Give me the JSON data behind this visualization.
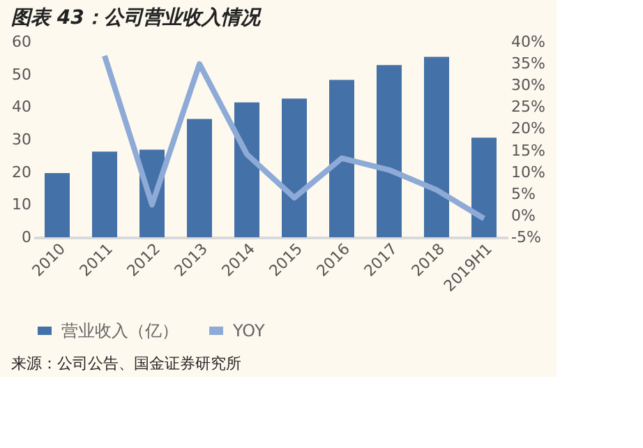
{
  "chart_data": {
    "type": "bar",
    "title": "图表 43：公司营业收入情况",
    "categories": [
      "2010",
      "2011",
      "2012",
      "2013",
      "2014",
      "2015",
      "2016",
      "2017",
      "2018",
      "2019H1"
    ],
    "series": [
      {
        "name": "营业收入（亿）",
        "color": "#4471a7",
        "values": [
          19.7,
          26.3,
          26.9,
          36.3,
          41.4,
          42.6,
          48.3,
          52.9,
          55.4,
          30.6
        ]
      },
      {
        "name": "YOY",
        "type": "line",
        "axis": "y2",
        "color": "#8eaad6",
        "values": [
          null,
          36.8,
          2.5,
          34.9,
          14.1,
          4.1,
          13.2,
          10.5,
          5.9,
          -0.7
        ]
      }
    ],
    "ylim": [
      0,
      60
    ],
    "yticks": [
      0,
      10,
      20,
      30,
      40,
      50,
      60
    ],
    "y2lim": [
      -5,
      40
    ],
    "y2ticks": [
      {
        "value": -5,
        "label": "-5%"
      },
      {
        "value": 0,
        "label": "0%"
      },
      {
        "value": 5,
        "label": "5%"
      },
      {
        "value": 10,
        "label": "10%"
      },
      {
        "value": 15,
        "label": "15%"
      },
      {
        "value": 20,
        "label": "20%"
      },
      {
        "value": 25,
        "label": "25%"
      },
      {
        "value": 30,
        "label": "30%"
      },
      {
        "value": 35,
        "label": "35%"
      },
      {
        "value": 40,
        "label": "40%"
      }
    ],
    "grid": false,
    "legend": "bottom",
    "marker": "none",
    "line_style": "solid",
    "annotations": [
      "来源：公司公告、国金证券研究所"
    ]
  }
}
